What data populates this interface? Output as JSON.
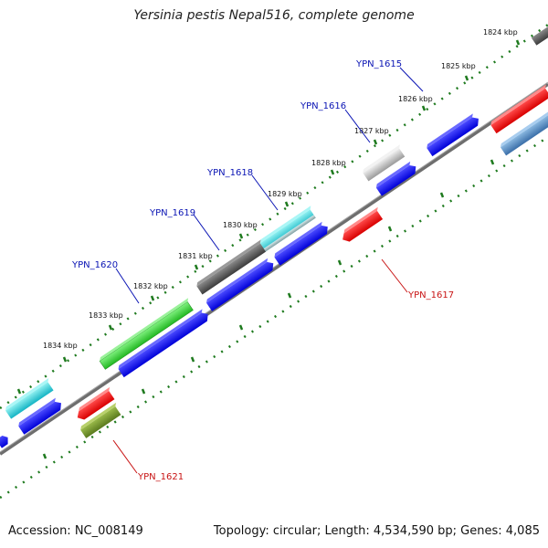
{
  "title": "Yersinia pestis Nepal516, complete genome",
  "footer": {
    "accession": "Accession: NC_008149",
    "topology": "Topology: circular; Length: 4,534,590 bp; Genes: 4,085"
  },
  "colors": {
    "forward_gene": "#0000ee",
    "reverse_gene": "#ee0000",
    "label_forward": "#0a14b4",
    "label_reverse": "#c81414",
    "ruler": "#1e7a1e",
    "backbone": "#6e6e6e"
  },
  "ruler": {
    "labels": [
      "1824 kbp",
      "1825 kbp",
      "1826 kbp",
      "1827 kbp",
      "1828 kbp",
      "1829 kbp",
      "1830 kbp",
      "1831 kbp",
      "1832 kbp",
      "1833 kbp",
      "1834 kbp"
    ]
  },
  "gene_labels": [
    {
      "text": "YPN_1615",
      "strand": "forward"
    },
    {
      "text": "YPN_1616",
      "strand": "forward"
    },
    {
      "text": "YPN_1618",
      "strand": "forward"
    },
    {
      "text": "YPN_1619",
      "strand": "forward"
    },
    {
      "text": "YPN_1620",
      "strand": "forward"
    },
    {
      "text": "YPN_1617",
      "strand": "reverse"
    },
    {
      "text": "YPN_1621",
      "strand": "reverse"
    }
  ]
}
